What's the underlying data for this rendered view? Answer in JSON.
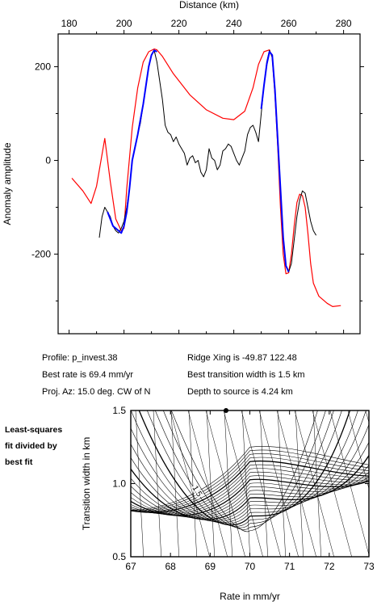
{
  "info": {
    "profile": "Profile: p_invest.38",
    "best_rate": "Best rate is 69.4 mm/yr",
    "proj_az": "Proj. Az: 15.0 deg. CW of N",
    "ridge_xing": "Ridge Xing is -49.87 122.48",
    "best_width": "Best transition width is 1.5 km",
    "depth": "Depth to source is   4.24 km"
  },
  "side_note": [
    "Least-squares",
    "fit divided by",
    "best fit"
  ],
  "colors": {
    "observed": "#000000",
    "model": "#ff0000",
    "fit_window": "#0000ff",
    "axes": "#000000"
  },
  "chart_data": [
    {
      "type": "line",
      "title": "",
      "xlabel": "Distance (km)",
      "ylabel": "Anomaly amplitude",
      "xlim": [
        176,
        286
      ],
      "ylim": [
        -370,
        270
      ],
      "xticks": [
        180,
        200,
        220,
        240,
        260,
        280
      ],
      "yticks": [
        -200,
        0,
        200
      ],
      "grid": false,
      "series": [
        {
          "role": "model",
          "x": [
            181,
            185,
            188,
            190,
            193,
            195,
            197,
            199,
            200,
            201,
            203,
            205,
            207,
            209,
            211,
            212,
            214,
            218,
            224,
            230,
            236,
            240,
            244,
            247,
            249,
            251,
            253,
            254,
            255,
            256,
            257,
            258,
            259,
            260,
            261,
            262,
            263,
            264,
            265,
            266,
            267,
            268,
            269,
            271,
            274,
            276,
            279
          ],
          "y": [
            -38,
            -65,
            -92,
            -55,
            47,
            -45,
            -125,
            -150,
            -145,
            -60,
            70,
            155,
            210,
            232,
            238,
            236,
            222,
            185,
            140,
            108,
            90,
            87,
            105,
            155,
            205,
            232,
            236,
            220,
            140,
            30,
            -100,
            -200,
            -242,
            -240,
            -200,
            -140,
            -90,
            -72,
            -75,
            -100,
            -155,
            -220,
            -262,
            -290,
            -305,
            -312,
            -310
          ]
        },
        {
          "role": "observed",
          "x": [
            191,
            192,
            193,
            194,
            195,
            196,
            197,
            198,
            199,
            200,
            201,
            202,
            203,
            204,
            205,
            206,
            207,
            208,
            209,
            210,
            211,
            212,
            213,
            214,
            215,
            216,
            217,
            218,
            219,
            220,
            221,
            222,
            223,
            224,
            225,
            226,
            227,
            228,
            229,
            230,
            231,
            232,
            233,
            234,
            235,
            236,
            237,
            238,
            239,
            240,
            241,
            242,
            243,
            244,
            245,
            246,
            247,
            248,
            249,
            250,
            251,
            252,
            253,
            254,
            255,
            256,
            257,
            258,
            259,
            260,
            261,
            262,
            263,
            264,
            265,
            266,
            267,
            268,
            269,
            270
          ],
          "y": [
            -165,
            -120,
            -100,
            -110,
            -120,
            -140,
            -150,
            -155,
            -145,
            -130,
            -100,
            -60,
            0,
            30,
            55,
            80,
            120,
            160,
            200,
            225,
            235,
            210,
            170,
            130,
            75,
            60,
            55,
            40,
            50,
            35,
            25,
            15,
            -10,
            5,
            10,
            -5,
            0,
            -25,
            -35,
            -20,
            25,
            5,
            0,
            -20,
            -10,
            20,
            25,
            35,
            30,
            15,
            0,
            -10,
            5,
            20,
            55,
            70,
            75,
            60,
            40,
            100,
            160,
            210,
            235,
            220,
            150,
            50,
            -60,
            -160,
            -225,
            -238,
            -220,
            -170,
            -120,
            -85,
            -65,
            -70,
            -100,
            -130,
            -150,
            -160
          ]
        },
        {
          "role": "fit_window",
          "x": [
            194,
            196,
            198,
            199,
            200,
            201,
            202,
            203,
            205,
            207,
            208,
            209,
            210,
            211,
            212,
            250,
            251,
            252,
            253,
            254,
            255,
            256,
            257,
            258,
            259,
            260
          ],
          "y": [
            -110,
            -140,
            -150,
            -155,
            -140,
            -110,
            -60,
            0,
            55,
            120,
            160,
            200,
            225,
            235,
            232,
            110,
            160,
            205,
            232,
            225,
            150,
            45,
            -60,
            -165,
            -225,
            -238
          ]
        }
      ]
    },
    {
      "type": "contour",
      "title": "",
      "xlabel": "Rate in mm/yr",
      "ylabel": "Transition width in km",
      "xlim": [
        67,
        73
      ],
      "ylim": [
        0.5,
        1.5
      ],
      "xticks": [
        67,
        68,
        69,
        70,
        71,
        72,
        73
      ],
      "yticks": [
        0.5,
        1.0,
        1.5
      ],
      "contour_label": "1.5",
      "best_fit": {
        "x": 69.4,
        "y": 1.5
      },
      "minimum": {
        "x": 70.0,
        "y": 0.62
      }
    }
  ]
}
